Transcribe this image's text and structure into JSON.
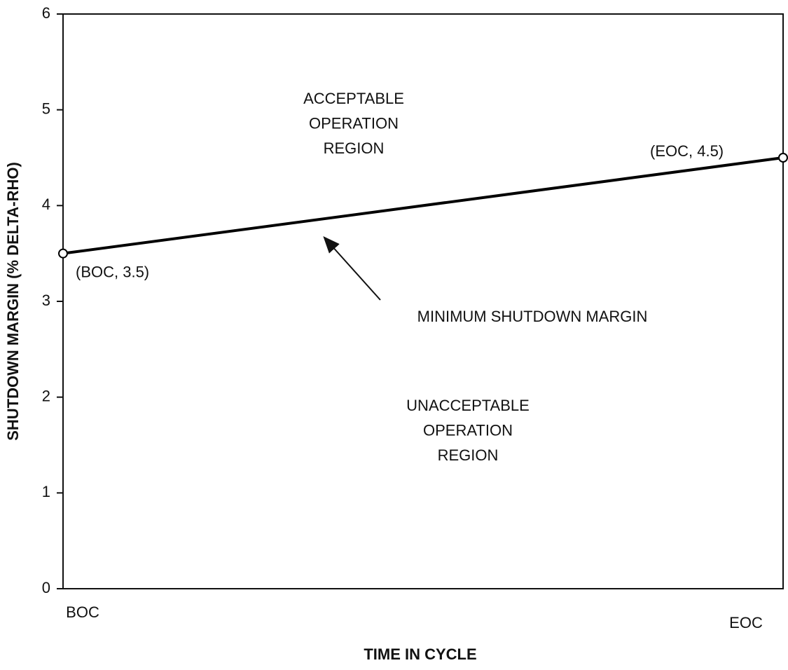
{
  "chart_data": {
    "type": "line",
    "xlabel": "TIME IN CYCLE",
    "ylabel": "SHUTDOWN MARGIN (% DELTA-RHO)",
    "categories": [
      "BOC",
      "EOC"
    ],
    "values": [
      3.5,
      4.5
    ],
    "value_labels": [
      "(BOC, 3.5)",
      "(EOC, 4.5)"
    ],
    "color": "#000000",
    "ylim": [
      0,
      6
    ],
    "yticks": [
      0,
      1,
      2,
      3,
      4,
      5,
      6
    ],
    "grid": false,
    "annotations": [
      [
        "ACCEPTABLE",
        "OPERATION",
        "REGION"
      ],
      [
        "UNACCEPTABLE",
        "OPERATION",
        "REGION"
      ],
      [
        "MINIMUM SHUTDOWN MARGIN"
      ]
    ]
  }
}
